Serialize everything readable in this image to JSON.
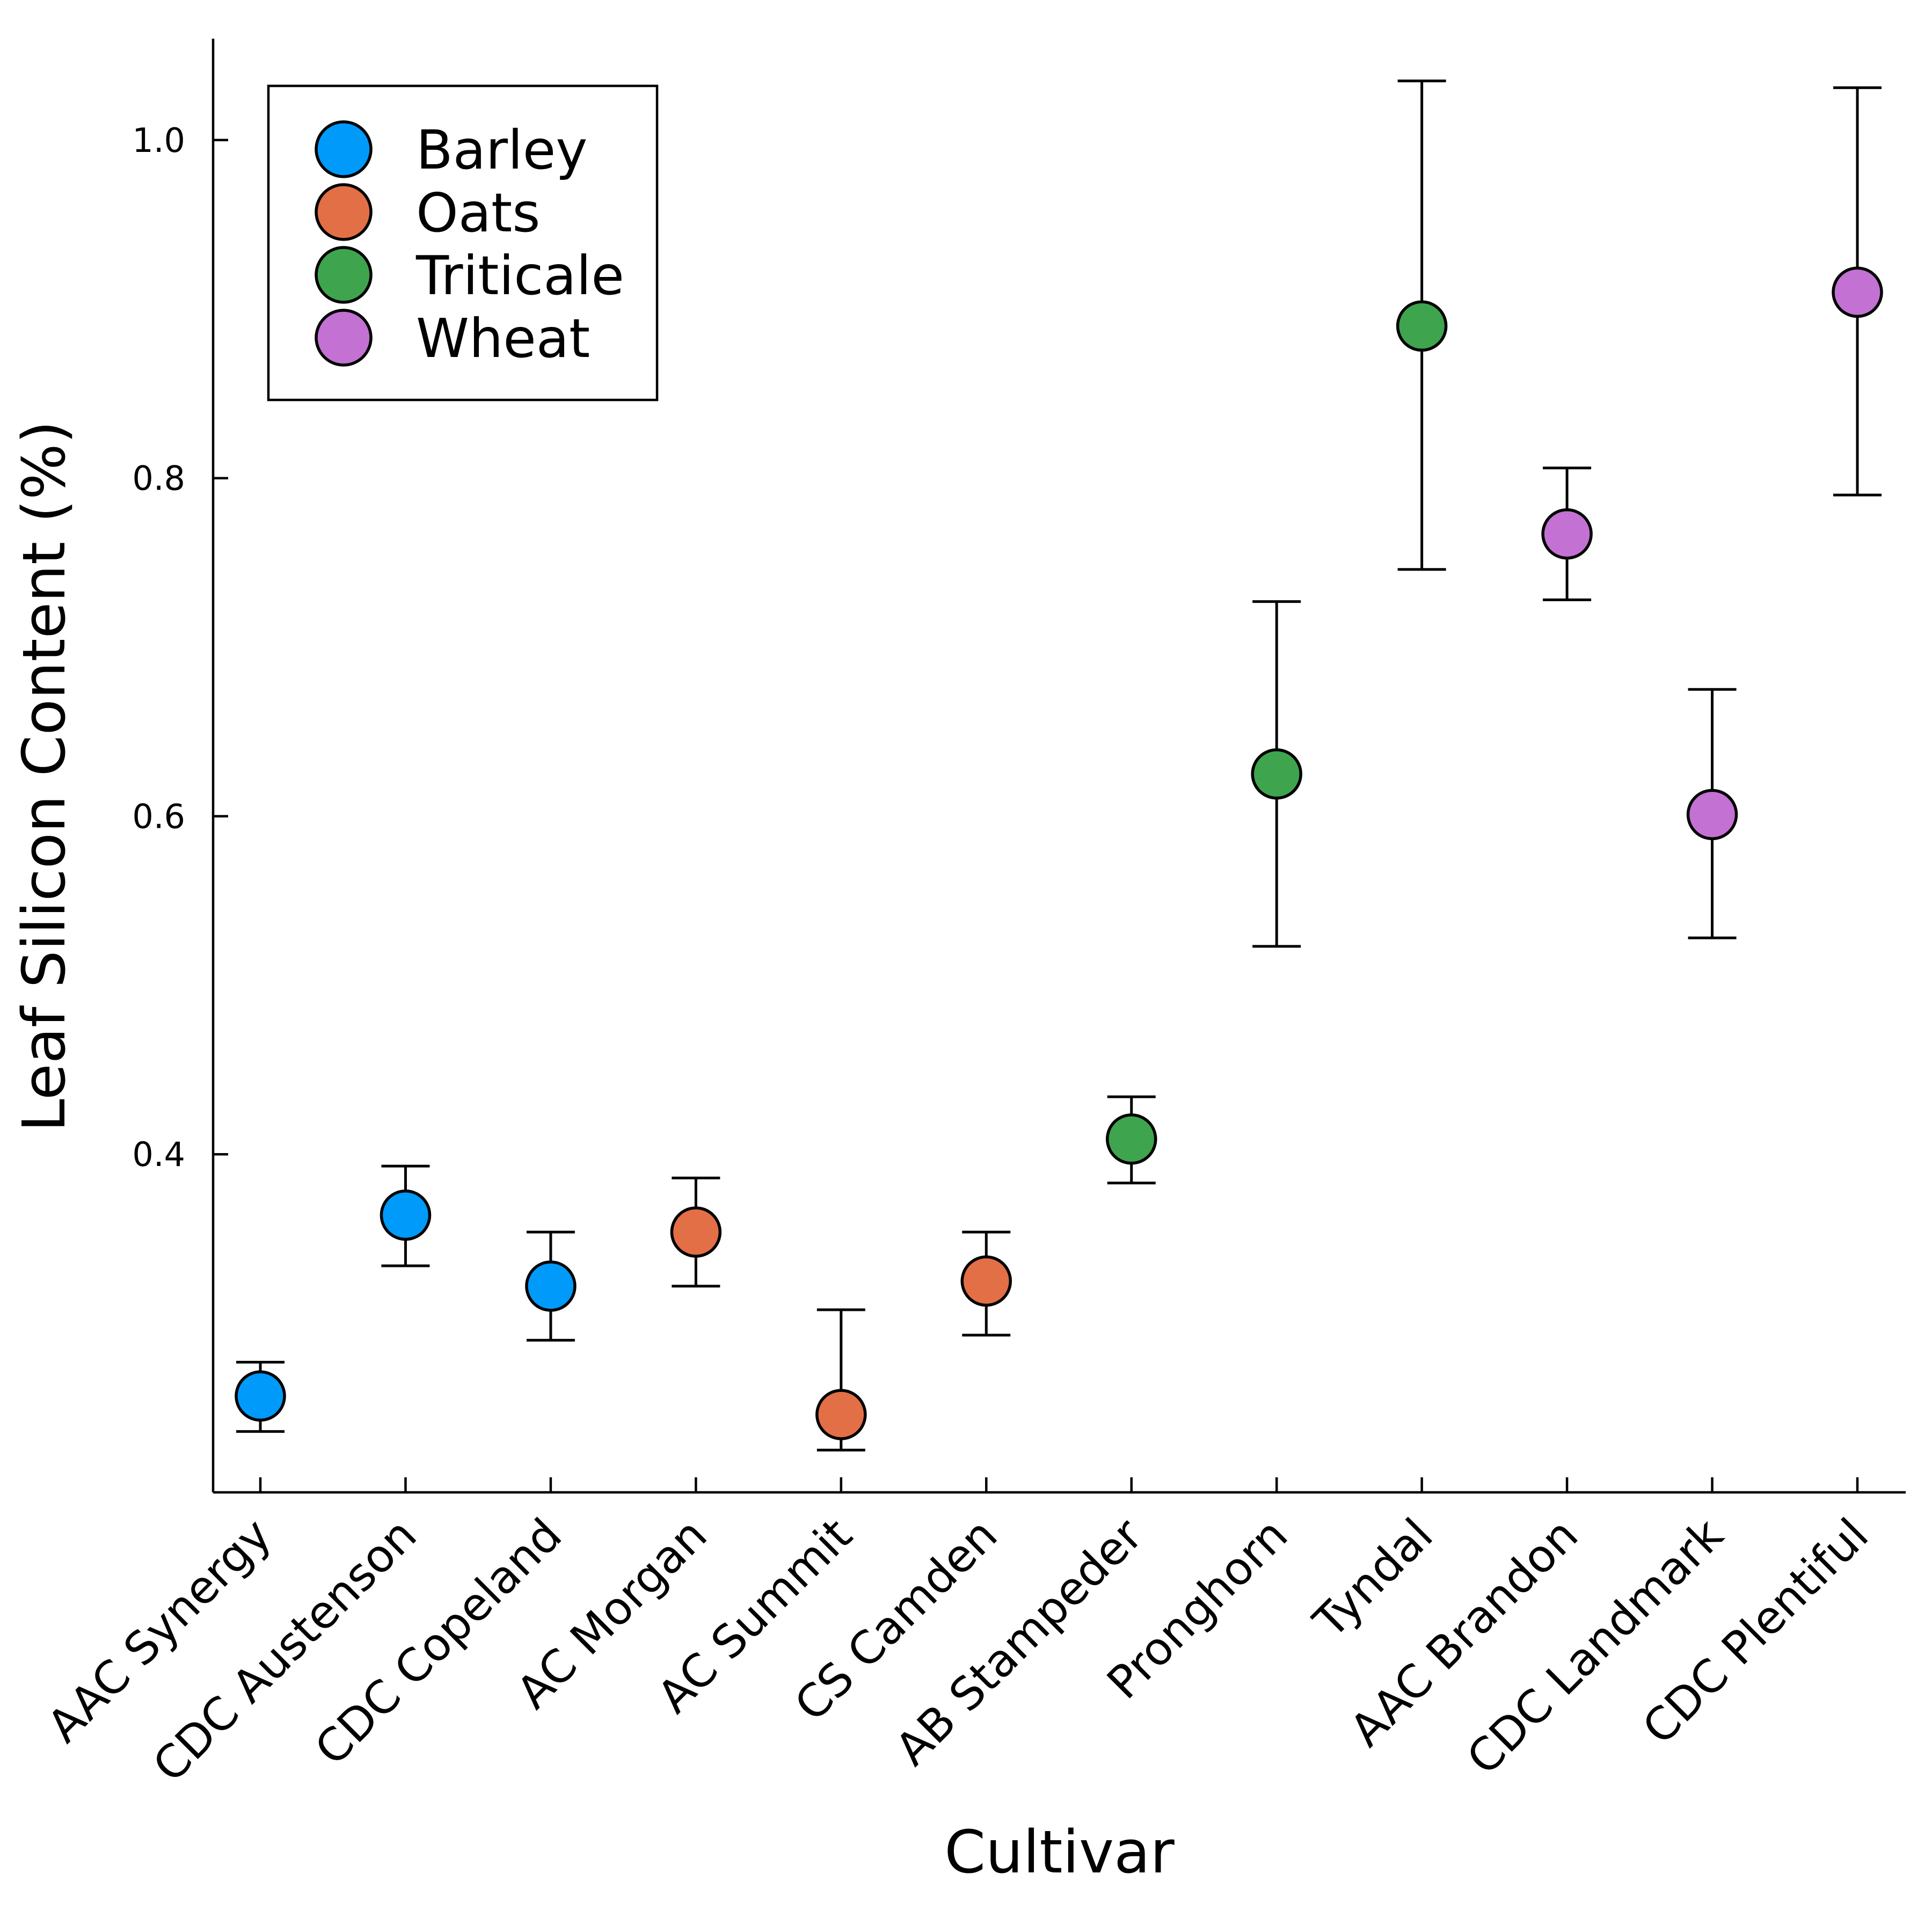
{
  "chart_data": {
    "type": "scatter",
    "xlabel": "Cultivar",
    "ylabel": "Leaf Silicon Content (%)",
    "categories": [
      "AAC Synergy",
      "CDC Austenson",
      "CDC Copeland",
      "AC Morgan",
      "AC Summit",
      "CS Camden",
      "AB Stampeder",
      "Pronghorn",
      "Tyndal",
      "AAC Brandon",
      "CDC Landmark",
      "CDC Plentiful"
    ],
    "ylim": [
      0.2,
      1.06
    ],
    "yticks": [
      0.4,
      0.6,
      0.8,
      1.0
    ],
    "ytick_labels": [
      "0.4",
      "0.6",
      "0.8",
      "1.0"
    ],
    "grid": false,
    "legend_position": "top-left",
    "series": [
      {
        "name": "Barley",
        "color": "#009AFA",
        "points": [
          {
            "x": "AAC Synergy",
            "y": 0.257,
            "lower": 0.236,
            "upper": 0.277
          },
          {
            "x": "CDC Austenson",
            "y": 0.364,
            "lower": 0.334,
            "upper": 0.393
          },
          {
            "x": "CDC Copeland",
            "y": 0.322,
            "lower": 0.29,
            "upper": 0.354
          }
        ]
      },
      {
        "name": "Oats",
        "color": "#E36F47",
        "points": [
          {
            "x": "AC Morgan",
            "y": 0.354,
            "lower": 0.322,
            "upper": 0.386
          },
          {
            "x": "AC Summit",
            "y": 0.246,
            "lower": 0.225,
            "upper": 0.308
          },
          {
            "x": "CS Camden",
            "y": 0.325,
            "lower": 0.293,
            "upper": 0.354
          }
        ]
      },
      {
        "name": "Triticale",
        "color": "#3EA44E",
        "points": [
          {
            "x": "AB Stampeder",
            "y": 0.409,
            "lower": 0.383,
            "upper": 0.434
          },
          {
            "x": "Pronghorn",
            "y": 0.625,
            "lower": 0.523,
            "upper": 0.727
          },
          {
            "x": "Tyndal",
            "y": 0.89,
            "lower": 0.746,
            "upper": 1.035
          }
        ]
      },
      {
        "name": "Wheat",
        "color": "#C371D2",
        "points": [
          {
            "x": "AAC Brandon",
            "y": 0.767,
            "lower": 0.728,
            "upper": 0.806
          },
          {
            "x": "CDC Landmark",
            "y": 0.601,
            "lower": 0.528,
            "upper": 0.675
          },
          {
            "x": "CDC Plentiful",
            "y": 0.91,
            "lower": 0.79,
            "upper": 1.031
          }
        ]
      }
    ]
  }
}
